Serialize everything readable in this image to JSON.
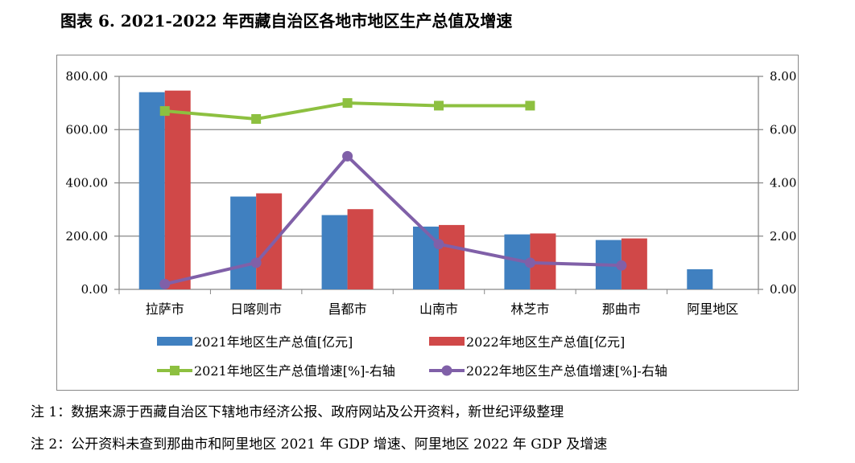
{
  "title": "图表 6. 2021-2022 年西藏自治区各地市地区生产总值及增速",
  "notes": [
    "注 1：数据来源于西藏自治区下辖地市经济公报、政府网站及公开资料，新世纪评级整理",
    "注 2：公开资料未查到那曲市和阿里地区 2021 年 GDP 增速、阿里地区 2022 年 GDP 及增速"
  ],
  "chart_data": {
    "type": "bar",
    "categories": [
      "拉萨市",
      "日喀则市",
      "昌都市",
      "山南市",
      "林芝市",
      "那曲市",
      "阿里地区"
    ],
    "ylim": [
      0,
      800
    ],
    "y2lim": [
      0,
      8
    ],
    "yticks": [
      "0.00",
      "200.00",
      "400.00",
      "600.00",
      "800.00"
    ],
    "y2ticks": [
      "0.00",
      "2.00",
      "4.00",
      "6.00",
      "8.00"
    ],
    "grid": true,
    "legend": "bottom",
    "series": [
      {
        "name": "2021年地区生产总值[亿元]",
        "type": "bar",
        "axis": "left",
        "color": "#4080C0",
        "values": [
          740.6,
          348.6,
          279,
          235.8,
          206.5,
          185.4,
          75.6
        ]
      },
      {
        "name": "2022年地区生产总值[亿元]",
        "type": "bar",
        "axis": "left",
        "color": "#D04848",
        "values": [
          746.6,
          360.7,
          301.3,
          241.8,
          210,
          191.4,
          null
        ]
      },
      {
        "name": "2021年地区生产总值增速[%]-右轴",
        "type": "line",
        "marker": "square",
        "axis": "right",
        "color": "#8DC040",
        "values": [
          6.7,
          6.4,
          7.0,
          6.9,
          6.9,
          null,
          null
        ]
      },
      {
        "name": "2022年地区生产总值增速[%]-右轴",
        "type": "line",
        "marker": "circle",
        "axis": "right",
        "color": "#8060A8",
        "values": [
          0.2,
          1.0,
          5.0,
          1.7,
          1.0,
          0.9,
          null
        ]
      }
    ]
  }
}
